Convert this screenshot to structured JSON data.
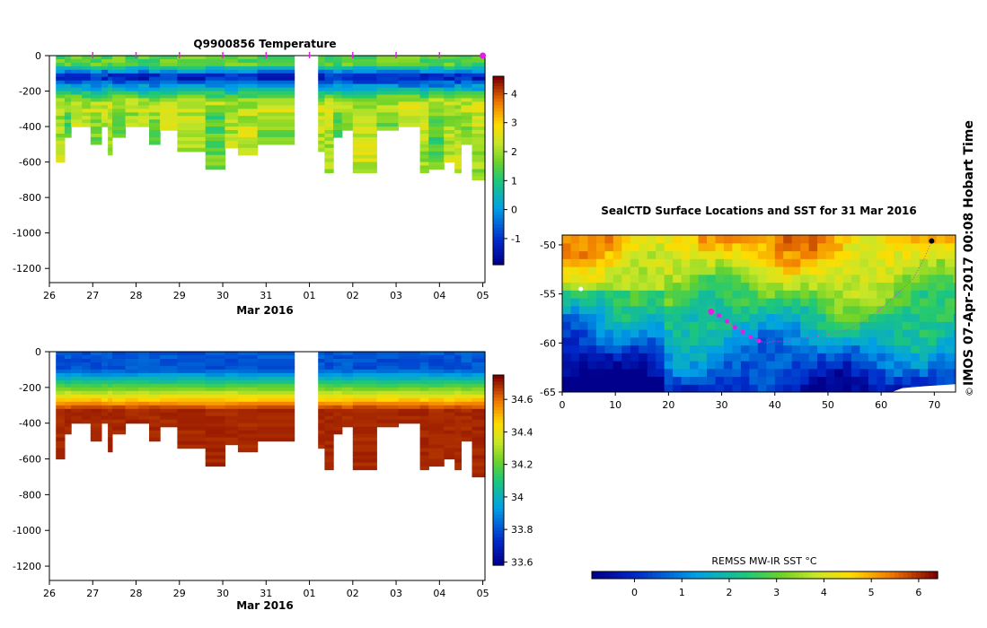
{
  "chart_data": [
    {
      "type": "heatmap",
      "title": "Q9900856  Temperature",
      "xlabel": "Mar 2016",
      "ylabel": "",
      "x_tick_labels": [
        "26",
        "27",
        "28",
        "29",
        "30",
        "31",
        "01",
        "02",
        "03",
        "04",
        "05"
      ],
      "x_tick_days": [
        0,
        1,
        2,
        3,
        4,
        5,
        6,
        7,
        8,
        9,
        10
      ],
      "xlim": [
        0,
        10.05
      ],
      "y_tick_values": [
        0,
        -200,
        -400,
        -600,
        -800,
        -1000,
        -1200
      ],
      "ylim": [
        -1280,
        0
      ],
      "colorbar": {
        "ticks": [
          -1,
          0,
          1,
          2,
          3,
          4
        ],
        "range": [
          -1.9,
          4.6
        ]
      },
      "profile_markers_days": [
        1,
        2,
        3,
        4,
        5,
        6,
        7,
        8,
        9
      ],
      "profiles": [
        {
          "start": 0.15,
          "end": 0.35,
          "depth": 590
        },
        {
          "start": 0.35,
          "end": 0.5,
          "depth": 450
        },
        {
          "start": 0.5,
          "end": 0.75,
          "depth": 400
        },
        {
          "start": 0.75,
          "end": 0.95,
          "depth": 400
        },
        {
          "start": 0.95,
          "end": 1.2,
          "depth": 500
        },
        {
          "start": 1.2,
          "end": 1.35,
          "depth": 400
        },
        {
          "start": 1.35,
          "end": 1.45,
          "depth": 550
        },
        {
          "start": 1.45,
          "end": 1.75,
          "depth": 450
        },
        {
          "start": 1.75,
          "end": 2.05,
          "depth": 400
        },
        {
          "start": 2.05,
          "end": 2.3,
          "depth": 400
        },
        {
          "start": 2.3,
          "end": 2.55,
          "depth": 500
        },
        {
          "start": 2.55,
          "end": 2.95,
          "depth": 420
        },
        {
          "start": 2.95,
          "end": 3.6,
          "depth": 540
        },
        {
          "start": 3.6,
          "end": 4.05,
          "depth": 640
        },
        {
          "start": 4.05,
          "end": 4.35,
          "depth": 520
        },
        {
          "start": 4.35,
          "end": 4.8,
          "depth": 560
        },
        {
          "start": 4.8,
          "end": 5.65,
          "depth": 500
        },
        {
          "start": 6.2,
          "end": 6.35,
          "depth": 530
        },
        {
          "start": 6.35,
          "end": 6.55,
          "depth": 650
        },
        {
          "start": 6.55,
          "end": 6.75,
          "depth": 450
        },
        {
          "start": 6.75,
          "end": 7.0,
          "depth": 420
        },
        {
          "start": 7.0,
          "end": 7.55,
          "depth": 660
        },
        {
          "start": 7.55,
          "end": 8.05,
          "depth": 420
        },
        {
          "start": 8.05,
          "end": 8.55,
          "depth": 400
        },
        {
          "start": 8.55,
          "end": 8.75,
          "depth": 660
        },
        {
          "start": 8.75,
          "end": 9.1,
          "depth": 640
        },
        {
          "start": 9.1,
          "end": 9.35,
          "depth": 600
        },
        {
          "start": 9.35,
          "end": 9.5,
          "depth": 650
        },
        {
          "start": 9.5,
          "end": 9.75,
          "depth": 500
        },
        {
          "start": 9.75,
          "end": 10.05,
          "depth": 700
        }
      ],
      "depth_profile": {
        "mode": "temperature",
        "surface_value": 1.5,
        "min_value": -1.4,
        "min_depth": 110,
        "deep_value": 2.2
      }
    },
    {
      "type": "heatmap",
      "title": "",
      "xlabel": "Mar 2016",
      "ylabel": "",
      "x_tick_labels": [
        "26",
        "27",
        "28",
        "29",
        "30",
        "31",
        "01",
        "02",
        "03",
        "04",
        "05"
      ],
      "x_tick_days": [
        0,
        1,
        2,
        3,
        4,
        5,
        6,
        7,
        8,
        9,
        10
      ],
      "xlim": [
        0,
        10.05
      ],
      "y_tick_values": [
        0,
        -200,
        -400,
        -600,
        -800,
        -1000,
        -1200
      ],
      "ylim": [
        -1280,
        0
      ],
      "colorbar": {
        "ticks": [
          33.6,
          33.8,
          34,
          34.2,
          34.4,
          34.6
        ],
        "range": [
          33.58,
          34.75
        ]
      },
      "depth_profile": {
        "mode": "salinity",
        "surface_value": 33.8,
        "deep_value": 34.72
      }
    },
    {
      "type": "heatmap",
      "title": "SealCTD Surface Locations and SST for 31 Mar 2016",
      "xlabel": "",
      "ylabel": "",
      "x_tick_values": [
        0,
        10,
        20,
        30,
        40,
        50,
        60,
        70
      ],
      "xlim": [
        0,
        74
      ],
      "y_tick_values": [
        -50,
        -55,
        -60,
        -65
      ],
      "ylim": [
        -65,
        -49
      ],
      "colorbar_title": "REMSS MW-IR SST °C",
      "colorbar": {
        "ticks": [
          0,
          1,
          2,
          3,
          4,
          5,
          6
        ],
        "range": [
          -0.9,
          6.4
        ]
      },
      "track": [
        [
          28,
          -56.8
        ],
        [
          29.5,
          -57.2
        ],
        [
          31,
          -57.8
        ],
        [
          32.5,
          -58.4
        ],
        [
          34,
          -58.9
        ],
        [
          35.5,
          -59.4
        ],
        [
          37,
          -59.8
        ],
        [
          38.5,
          -60.0
        ],
        [
          40,
          -59.8
        ],
        [
          42,
          -59.9
        ],
        [
          45,
          -59.6
        ],
        [
          48,
          -59.3
        ],
        [
          51,
          -59.0
        ],
        [
          54,
          -58.6
        ],
        [
          57,
          -57.8
        ],
        [
          60,
          -56.5
        ],
        [
          63,
          -55.0
        ],
        [
          66,
          -53.5
        ],
        [
          68,
          -51.5
        ],
        [
          69.5,
          -49.6
        ]
      ]
    }
  ],
  "footer": {
    "watermark": "IMOS 07-Apr-2017 00:08 Hobart Time",
    "copyright": "©"
  }
}
